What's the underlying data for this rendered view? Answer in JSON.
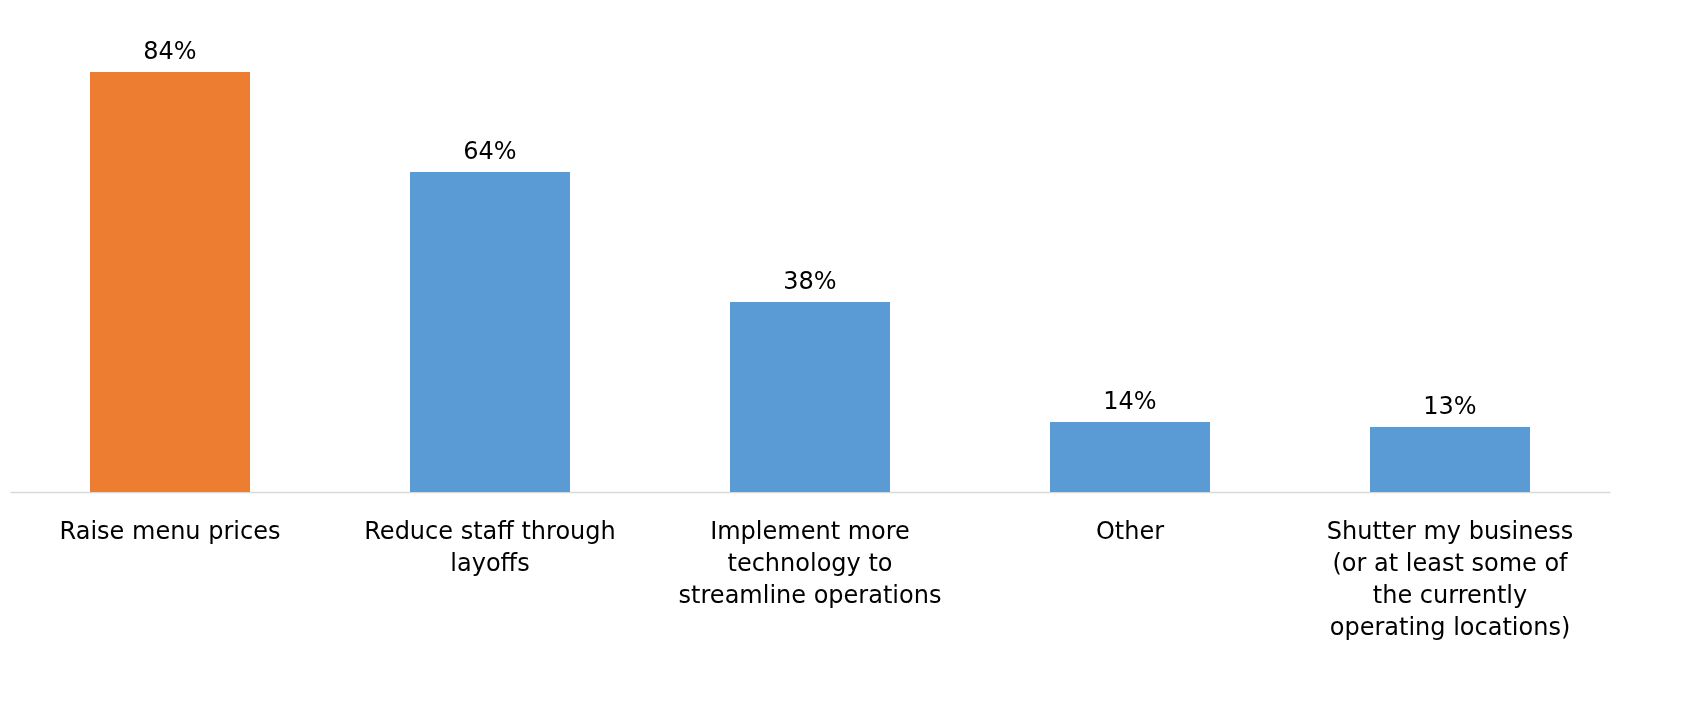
{
  "chart_data": {
    "type": "bar",
    "categories": [
      "Raise menu prices",
      "Reduce staff through layoffs",
      "Implement more technology to streamline operations",
      "Other",
      "Shutter my business (or at least some of the currently operating locations)"
    ],
    "values": [
      84,
      64,
      38,
      14,
      13
    ],
    "colors": [
      "#ed7d31",
      "#5b9bd5",
      "#5b9bd5",
      "#5b9bd5",
      "#5b9bd5"
    ],
    "value_labels": [
      "84%",
      "64%",
      "38%",
      "14%",
      "13%"
    ]
  }
}
